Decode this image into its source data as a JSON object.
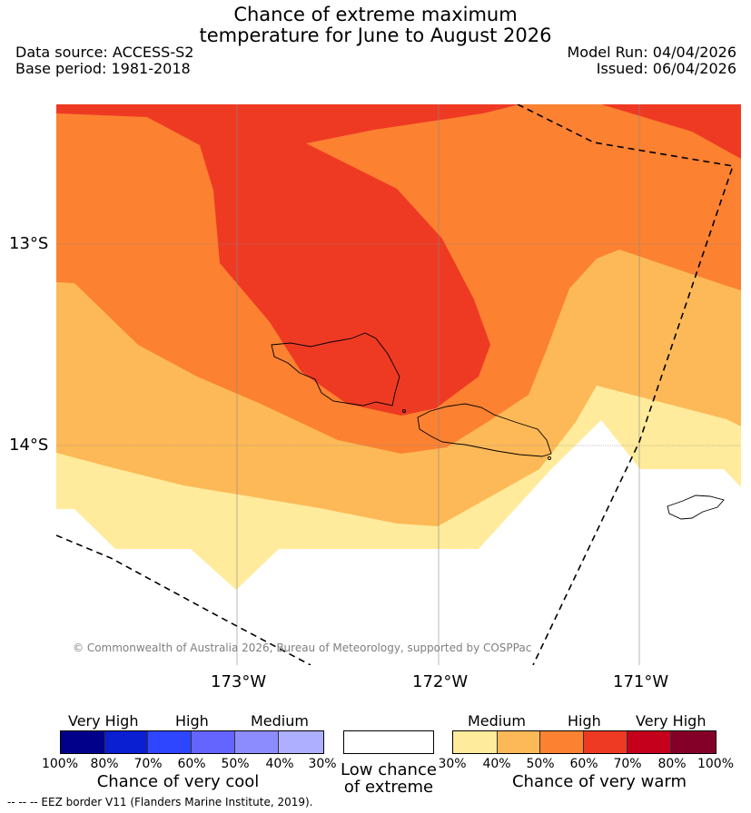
{
  "header": {
    "title_line1": "Chance of extreme maximum",
    "title_line2": "temperature for June to August 2026",
    "source": "Data source: ACCESS-S2",
    "base_period": "Base period: 1981-2018",
    "model_run": "Model Run: 04/04/2026",
    "issued": "Issued: 06/04/2026"
  },
  "map": {
    "lat_labels": [
      "13°S",
      "14°S"
    ],
    "lon_labels": [
      "173°W",
      "172°W",
      "171°W"
    ],
    "copyright": "© Commonwealth of Australia 2026, Bureau of Meteorology, supported by COSPPac"
  },
  "legend": {
    "cool": {
      "categories": [
        "Very High",
        "High",
        "Medium"
      ],
      "colors": [
        "#00008b",
        "#0a1ed2",
        "#2e46ff",
        "#6464ff",
        "#8c8cff",
        "#afafff"
      ],
      "ticks": [
        "100%",
        "80%",
        "70%",
        "60%",
        "50%",
        "40%",
        "30%"
      ],
      "title": "Chance of very cool"
    },
    "neutral": {
      "title_line1": "Low chance",
      "title_line2": "of extreme",
      "color": "#ffffff"
    },
    "warm": {
      "categories": [
        "Medium",
        "High",
        "Very High"
      ],
      "colors": [
        "#ffeb9b",
        "#fdb957",
        "#fc8131",
        "#ee3a23",
        "#c4001c",
        "#850029"
      ],
      "ticks": [
        "30%",
        "40%",
        "50%",
        "60%",
        "70%",
        "80%",
        "100%"
      ],
      "title": "Chance of very warm"
    },
    "eez_note": "-- -- -- EEZ border V11 (Flanders Marine Institute, 2019)."
  }
}
